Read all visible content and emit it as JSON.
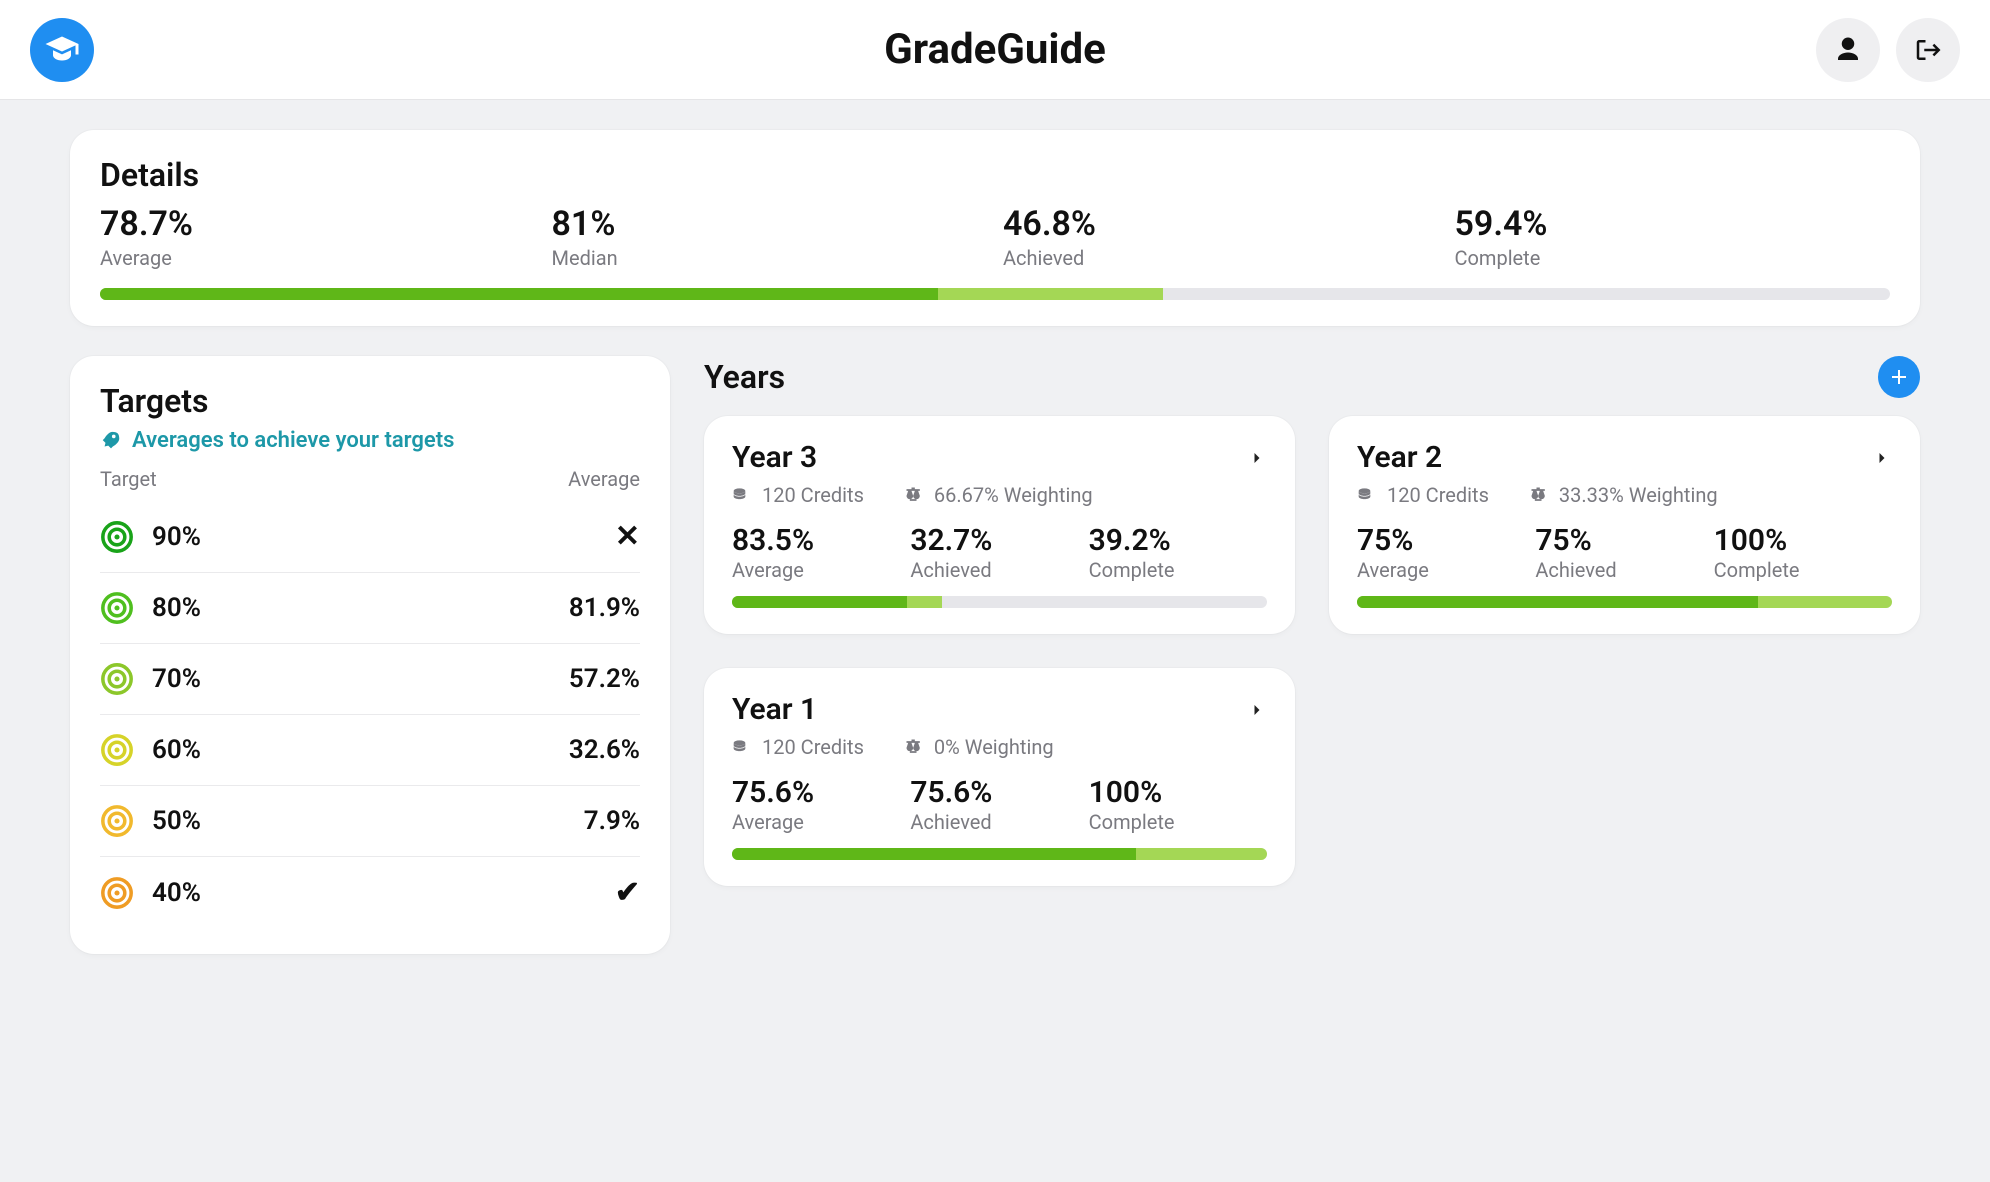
{
  "app": {
    "title": "GradeGuide"
  },
  "colors": {
    "accent": "#1f8ef1",
    "bg": "#f0f1f3",
    "card": "#ffffff",
    "muted": "#7a7a80",
    "track": "#e6e6ea",
    "green_dark": "#5fb718",
    "green_light": "#a4d755",
    "teal": "#1d98a8"
  },
  "details": {
    "title": "Details",
    "stats": [
      {
        "value": "78.7%",
        "label": "Average"
      },
      {
        "value": "81%",
        "label": "Median"
      },
      {
        "value": "46.8%",
        "label": "Achieved"
      },
      {
        "value": "59.4%",
        "label": "Complete"
      }
    ],
    "progress": {
      "achieved_pct": 46.8,
      "complete_pct": 59.4
    }
  },
  "targets": {
    "title": "Targets",
    "subtitle": "Averages to achieve your targets",
    "head_target": "Target",
    "head_average": "Average",
    "rows": [
      {
        "target": "90%",
        "average": "",
        "status": "fail",
        "color": "#19a319"
      },
      {
        "target": "80%",
        "average": "81.9%",
        "status": "num",
        "color": "#4fbf1f"
      },
      {
        "target": "70%",
        "average": "57.2%",
        "status": "num",
        "color": "#8cc72a"
      },
      {
        "target": "60%",
        "average": "32.6%",
        "status": "num",
        "color": "#d6d329"
      },
      {
        "target": "50%",
        "average": "7.9%",
        "status": "num",
        "color": "#f1b92d"
      },
      {
        "target": "40%",
        "average": "",
        "status": "pass",
        "color": "#ef9c24"
      }
    ]
  },
  "years": {
    "title": "Years",
    "items": [
      {
        "title": "Year 3",
        "credits": "120 Credits",
        "weighting": "66.67% Weighting",
        "average": "83.5%",
        "achieved": "32.7%",
        "complete": "39.2%",
        "labels": {
          "average": "Average",
          "achieved": "Achieved",
          "complete": "Complete"
        },
        "progress": {
          "achieved_pct": 32.7,
          "complete_pct": 39.2
        }
      },
      {
        "title": "Year 2",
        "credits": "120 Credits",
        "weighting": "33.33% Weighting",
        "average": "75%",
        "achieved": "75%",
        "complete": "100%",
        "labels": {
          "average": "Average",
          "achieved": "Achieved",
          "complete": "Complete"
        },
        "progress": {
          "achieved_pct": 75,
          "complete_pct": 100
        }
      },
      {
        "title": "Year 1",
        "credits": "120 Credits",
        "weighting": "0% Weighting",
        "average": "75.6%",
        "achieved": "75.6%",
        "complete": "100%",
        "labels": {
          "average": "Average",
          "achieved": "Achieved",
          "complete": "Complete"
        },
        "progress": {
          "achieved_pct": 75.6,
          "complete_pct": 100
        }
      }
    ]
  }
}
